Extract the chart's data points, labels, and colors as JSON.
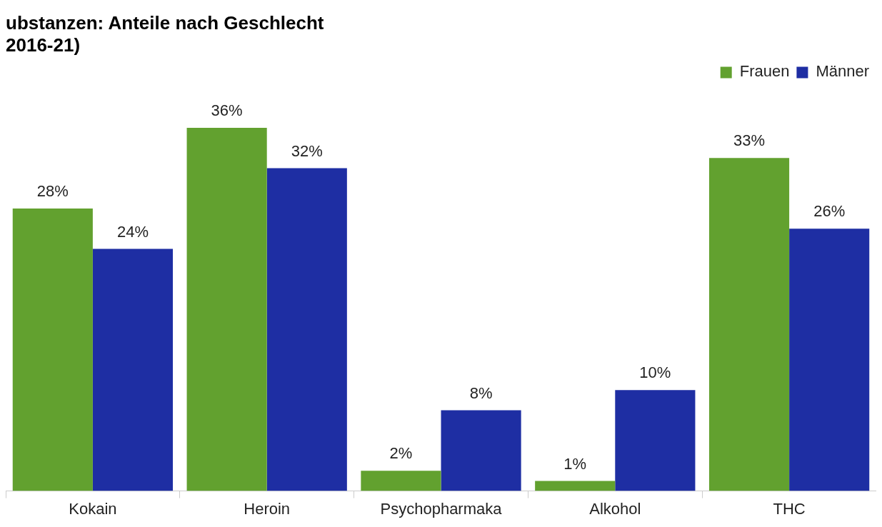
{
  "chart_data": {
    "type": "bar",
    "title": "ubstanzen: Anteile nach Geschlecht",
    "subtitle": "2016-21)",
    "categories": [
      "Kokain",
      "Heroin",
      "Psychopharmaka",
      "Alkohol",
      "THC"
    ],
    "series": [
      {
        "name": "Frauen",
        "color": "#62a12f",
        "values": [
          28,
          36,
          2,
          1,
          33
        ],
        "value_labels": [
          "28%",
          "36%",
          "2%",
          "1%",
          "33%"
        ]
      },
      {
        "name": "Männer",
        "color": "#1e2ea3",
        "values": [
          24,
          32,
          8,
          10,
          26
        ],
        "value_labels": [
          "24%",
          "32%",
          "8%",
          "10%",
          "26%"
        ]
      }
    ],
    "legend": "top right"
  }
}
